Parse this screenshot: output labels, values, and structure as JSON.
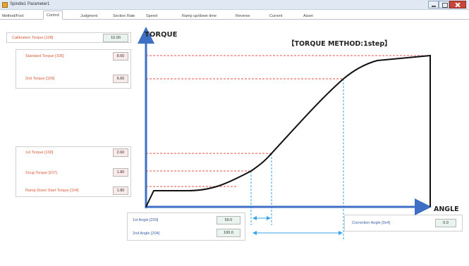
{
  "window": {
    "title": "Spindle1 Parameter1"
  },
  "tabs": [
    {
      "label": "Method/Fool"
    },
    {
      "label": "Control"
    },
    {
      "label": "Judgment"
    },
    {
      "label": "Section Rate"
    },
    {
      "label": "Speed"
    },
    {
      "label": "Ramp up/down time"
    },
    {
      "label": "Reverse"
    },
    {
      "label": "Current"
    },
    {
      "label": "Asset"
    }
  ],
  "chart": {
    "method_title": "【TORQUE METHOD:1step】",
    "y_axis_label": "TORQUE",
    "x_axis_label": "ANGLE"
  },
  "fields": {
    "calibration_torque": {
      "label": "Calibration Torque [108]",
      "value": "10.00"
    },
    "standard_torque": {
      "label": "Standard Torque [105]",
      "value": "8.60"
    },
    "second_torque": {
      "label": "2nd Torque [109]",
      "value": "6.60"
    },
    "first_torque": {
      "label": "1st Torque [100]",
      "value": "2.60"
    },
    "snug_torque": {
      "label": "Snug Torque [107]",
      "value": "1.80"
    },
    "ramp_down_start_torque": {
      "label": "Ramp Down Start Torque [104]",
      "value": "1.80"
    },
    "first_angle": {
      "label": "1st Angle [203]",
      "value": "50.0"
    },
    "second_angle": {
      "label": "2nd Angle [204]",
      "value": "100.0"
    },
    "correction_angle": {
      "label": "Correction Angle [0x4]",
      "value": "0.0"
    }
  },
  "colors": {
    "axis": "#3d6fc4",
    "curve": "#111111",
    "torque_guides": "#e8524a",
    "angle_guides": "#37a6e6",
    "label_text": "#d9593a"
  }
}
